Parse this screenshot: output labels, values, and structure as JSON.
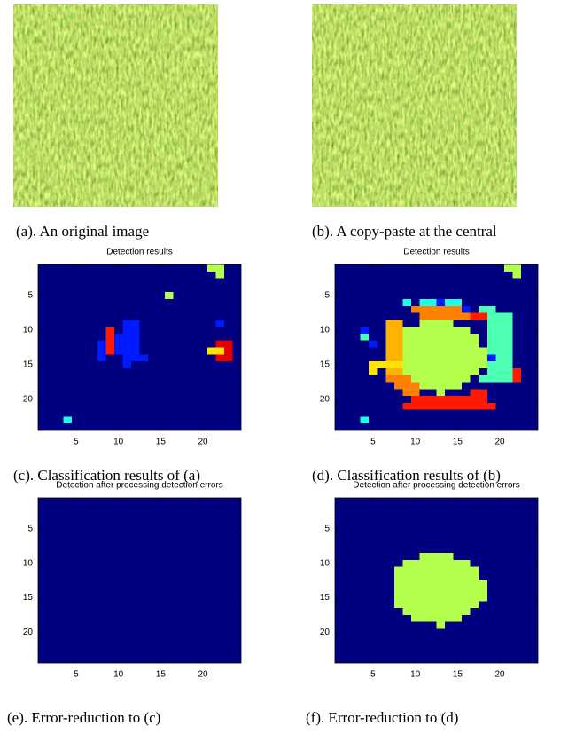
{
  "images": [
    {
      "caption": "(a). An original image"
    },
    {
      "caption": "(b). A copy-paste at the central"
    }
  ],
  "chart_data": [
    {
      "type": "heatmap",
      "title": "Detection results",
      "caption": "(c). Classification results of (a)",
      "xlim": [
        0.5,
        24.5
      ],
      "ylim": [
        24.5,
        0.5
      ],
      "xticks": [
        5,
        10,
        15,
        20
      ],
      "yticks": [
        5,
        10,
        15,
        20
      ],
      "clim": [
        0,
        1
      ],
      "background": 0,
      "cells": [
        [
          1,
          21,
          22,
          0.55
        ],
        [
          2,
          22,
          22,
          0.55
        ],
        [
          5,
          16,
          16,
          0.55
        ],
        [
          9,
          11,
          12,
          0.15
        ],
        [
          10,
          11,
          12,
          0.15
        ],
        [
          11,
          10,
          12,
          0.15
        ],
        [
          12,
          8,
          8,
          0.15
        ],
        [
          12,
          10,
          12,
          0.15
        ],
        [
          13,
          8,
          8,
          0.15
        ],
        [
          13,
          10,
          12,
          0.15
        ],
        [
          14,
          8,
          8,
          0.15
        ],
        [
          14,
          11,
          13,
          0.15
        ],
        [
          15,
          11,
          11,
          0.15
        ],
        [
          10,
          9,
          9,
          0.85
        ],
        [
          11,
          9,
          9,
          0.85
        ],
        [
          12,
          9,
          9,
          0.85
        ],
        [
          13,
          9,
          9,
          0.85
        ],
        [
          9,
          22,
          22,
          0.15
        ],
        [
          12,
          22,
          23,
          0.9
        ],
        [
          13,
          21,
          22,
          0.65
        ],
        [
          13,
          23,
          23,
          0.9
        ],
        [
          14,
          22,
          23,
          0.9
        ],
        [
          23,
          4,
          4,
          0.4
        ]
      ]
    },
    {
      "type": "heatmap",
      "title": "Detection results",
      "caption": "(d). Classification results of (b)",
      "xlim": [
        0.5,
        24.5
      ],
      "ylim": [
        24.5,
        0.5
      ],
      "xticks": [
        5,
        10,
        15,
        20
      ],
      "yticks": [
        5,
        10,
        15,
        20
      ],
      "clim": [
        0,
        1
      ],
      "background": 0,
      "cells": [
        [
          1,
          21,
          22,
          0.55
        ],
        [
          2,
          22,
          22,
          0.55
        ],
        [
          6,
          9,
          9,
          0.4
        ],
        [
          6,
          11,
          12,
          0.4
        ],
        [
          6,
          13,
          13,
          0.15
        ],
        [
          6,
          14,
          15,
          0.4
        ],
        [
          7,
          10,
          15,
          0.75
        ],
        [
          7,
          16,
          16,
          0.15
        ],
        [
          7,
          18,
          19,
          0.45
        ],
        [
          8,
          11,
          16,
          0.75
        ],
        [
          8,
          17,
          18,
          0.85
        ],
        [
          9,
          7,
          8,
          0.7
        ],
        [
          10,
          7,
          8,
          0.7
        ],
        [
          11,
          7,
          8,
          0.7
        ],
        [
          12,
          7,
          8,
          0.7
        ],
        [
          13,
          7,
          8,
          0.7
        ],
        [
          14,
          7,
          8,
          0.7
        ],
        [
          15,
          5,
          8,
          0.65
        ],
        [
          16,
          5,
          5,
          0.65
        ],
        [
          16,
          7,
          8,
          0.7
        ],
        [
          17,
          7,
          9,
          0.75
        ],
        [
          10,
          4,
          4,
          0.15
        ],
        [
          11,
          4,
          4,
          0.45
        ],
        [
          12,
          5,
          5,
          0.15
        ],
        [
          8,
          19,
          21,
          0.45
        ],
        [
          9,
          19,
          21,
          0.45
        ],
        [
          10,
          19,
          21,
          0.45
        ],
        [
          11,
          19,
          21,
          0.45
        ],
        [
          12,
          19,
          21,
          0.45
        ],
        [
          13,
          19,
          21,
          0.45
        ],
        [
          14,
          20,
          21,
          0.45
        ],
        [
          15,
          19,
          21,
          0.45
        ],
        [
          16,
          19,
          21,
          0.45
        ],
        [
          17,
          18,
          21,
          0.45
        ],
        [
          14,
          19,
          19,
          0.15
        ],
        [
          16,
          22,
          22,
          0.85
        ],
        [
          17,
          22,
          22,
          0.85
        ],
        [
          18,
          8,
          10,
          0.75
        ],
        [
          19,
          9,
          10,
          0.75
        ],
        [
          19,
          17,
          18,
          0.85
        ],
        [
          20,
          10,
          18,
          0.85
        ],
        [
          21,
          9,
          19,
          0.85
        ],
        [
          9,
          11,
          14,
          0.55
        ],
        [
          10,
          9,
          16,
          0.55
        ],
        [
          11,
          9,
          17,
          0.55
        ],
        [
          12,
          9,
          17,
          0.55
        ],
        [
          13,
          9,
          18,
          0.55
        ],
        [
          14,
          9,
          18,
          0.55
        ],
        [
          15,
          9,
          18,
          0.55
        ],
        [
          16,
          9,
          17,
          0.55
        ],
        [
          17,
          10,
          16,
          0.55
        ],
        [
          18,
          11,
          15,
          0.55
        ],
        [
          19,
          13,
          13,
          0.55
        ],
        [
          23,
          4,
          4,
          0.4
        ]
      ]
    },
    {
      "type": "heatmap",
      "title": "Detection after processing detection errors",
      "caption": "(e). Error-reduction to (c)",
      "xlim": [
        0.5,
        24.5
      ],
      "ylim": [
        24.5,
        0.5
      ],
      "xticks": [
        5,
        10,
        15,
        20
      ],
      "yticks": [
        5,
        10,
        15,
        20
      ],
      "clim": [
        0,
        1
      ],
      "background": 0,
      "cells": []
    },
    {
      "type": "heatmap",
      "title": "Detection after processing detection errors",
      "caption": "(f). Error-reduction to (d)",
      "xlim": [
        0.5,
        24.5
      ],
      "ylim": [
        24.5,
        0.5
      ],
      "xticks": [
        5,
        10,
        15,
        20
      ],
      "yticks": [
        5,
        10,
        15,
        20
      ],
      "clim": [
        0,
        1
      ],
      "background": 0,
      "cells": [
        [
          9,
          11,
          14,
          0.55
        ],
        [
          10,
          9,
          16,
          0.55
        ],
        [
          11,
          8,
          17,
          0.55
        ],
        [
          12,
          8,
          17,
          0.55
        ],
        [
          13,
          8,
          18,
          0.55
        ],
        [
          14,
          8,
          18,
          0.55
        ],
        [
          15,
          8,
          18,
          0.55
        ],
        [
          16,
          8,
          17,
          0.55
        ],
        [
          17,
          9,
          16,
          0.55
        ],
        [
          18,
          10,
          15,
          0.55
        ],
        [
          19,
          13,
          13,
          0.55
        ]
      ]
    }
  ]
}
